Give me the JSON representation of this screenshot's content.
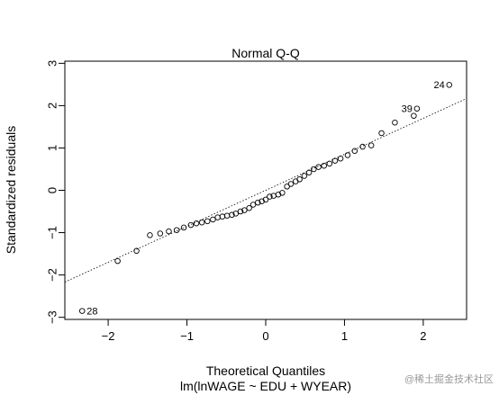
{
  "chart_data": {
    "type": "scatter",
    "title": "Normal Q-Q",
    "xlabel": "Theoretical Quantiles",
    "ylabel": "Standardized residuals",
    "subtitle": "lm(lnWAGE ~ EDU + WYEAR)",
    "xlim": [
      -2.55,
      2.55
    ],
    "ylim": [
      -3.05,
      3.05
    ],
    "xticks": [
      -2,
      -1,
      0,
      1,
      2
    ],
    "yticks": [
      -3,
      -2,
      -1,
      0,
      1,
      2,
      3
    ],
    "grid": false,
    "reference_line": {
      "slope": 0.85,
      "intercept": 0.0,
      "style": "dotted"
    },
    "points": [
      {
        "x": -2.33,
        "y": -2.85,
        "label": "28"
      },
      {
        "x": -1.88,
        "y": -1.67
      },
      {
        "x": -1.64,
        "y": -1.43
      },
      {
        "x": -1.47,
        "y": -1.06
      },
      {
        "x": -1.34,
        "y": -1.02
      },
      {
        "x": -1.23,
        "y": -0.97
      },
      {
        "x": -1.13,
        "y": -0.94
      },
      {
        "x": -1.04,
        "y": -0.88
      },
      {
        "x": -0.95,
        "y": -0.82
      },
      {
        "x": -0.88,
        "y": -0.78
      },
      {
        "x": -0.81,
        "y": -0.76
      },
      {
        "x": -0.74,
        "y": -0.73
      },
      {
        "x": -0.67,
        "y": -0.69
      },
      {
        "x": -0.61,
        "y": -0.64
      },
      {
        "x": -0.55,
        "y": -0.62
      },
      {
        "x": -0.49,
        "y": -0.6
      },
      {
        "x": -0.43,
        "y": -0.58
      },
      {
        "x": -0.38,
        "y": -0.55
      },
      {
        "x": -0.32,
        "y": -0.5
      },
      {
        "x": -0.27,
        "y": -0.47
      },
      {
        "x": -0.21,
        "y": -0.42
      },
      {
        "x": -0.16,
        "y": -0.34
      },
      {
        "x": -0.1,
        "y": -0.29
      },
      {
        "x": -0.05,
        "y": -0.26
      },
      {
        "x": 0.0,
        "y": -0.22
      },
      {
        "x": 0.05,
        "y": -0.15
      },
      {
        "x": 0.1,
        "y": -0.13
      },
      {
        "x": 0.16,
        "y": -0.1
      },
      {
        "x": 0.21,
        "y": -0.06
      },
      {
        "x": 0.27,
        "y": 0.09
      },
      {
        "x": 0.32,
        "y": 0.15
      },
      {
        "x": 0.38,
        "y": 0.21
      },
      {
        "x": 0.43,
        "y": 0.26
      },
      {
        "x": 0.49,
        "y": 0.34
      },
      {
        "x": 0.55,
        "y": 0.42
      },
      {
        "x": 0.61,
        "y": 0.5
      },
      {
        "x": 0.67,
        "y": 0.55
      },
      {
        "x": 0.74,
        "y": 0.58
      },
      {
        "x": 0.81,
        "y": 0.63
      },
      {
        "x": 0.88,
        "y": 0.7
      },
      {
        "x": 0.95,
        "y": 0.75
      },
      {
        "x": 1.04,
        "y": 0.83
      },
      {
        "x": 1.13,
        "y": 0.93
      },
      {
        "x": 1.23,
        "y": 1.03
      },
      {
        "x": 1.34,
        "y": 1.06
      },
      {
        "x": 1.47,
        "y": 1.35
      },
      {
        "x": 1.64,
        "y": 1.6
      },
      {
        "x": 1.88,
        "y": 1.76
      },
      {
        "x": 1.92,
        "y": 1.93,
        "label": "39"
      },
      {
        "x": 2.33,
        "y": 2.49,
        "label": "24"
      }
    ]
  },
  "watermark": "@稀土掘金技术社区"
}
